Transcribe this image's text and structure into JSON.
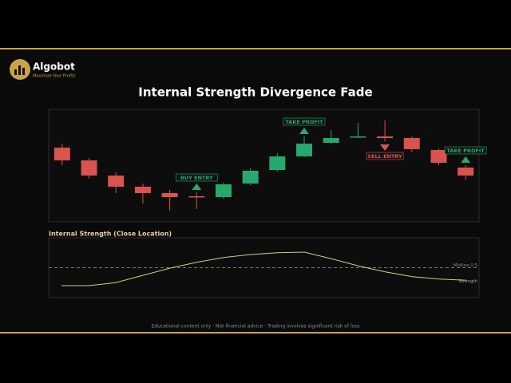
{
  "brand": {
    "name": "Algobot",
    "tagline": "Maximize Your Profits"
  },
  "footer": "Educational content only  ·  Not financial advice  ·  Trading involves significant risk of loss",
  "chart_data": [
    {
      "type": "candlestick",
      "title": "Internal Strength Divergence Fade",
      "open": [
        115,
        99,
        80,
        66,
        58,
        54,
        53,
        70,
        87,
        104,
        121,
        128,
        129,
        127,
        112,
        90
      ],
      "high": [
        120,
        102,
        84,
        70,
        62,
        59,
        71,
        89,
        108,
        129,
        137,
        146,
        149,
        129,
        114,
        93
      ],
      "low": [
        93,
        76,
        58,
        45,
        36,
        38,
        51,
        68,
        85,
        103,
        119,
        127,
        123,
        109,
        93,
        75
      ],
      "close": [
        99,
        80,
        66,
        58,
        53,
        53,
        69,
        86,
        104,
        120,
        127,
        129,
        127,
        113,
        96,
        80
      ],
      "up_color": "#26a96c",
      "down_color": "#d9534f",
      "ylim": [
        22,
        163
      ],
      "annotations": [
        {
          "index": 5,
          "text": "BUY ENTRY",
          "color": "#26a96c",
          "position": "above"
        },
        {
          "index": 9,
          "text": "TAKE PROFIT",
          "color": "#26a96c",
          "position": "above"
        },
        {
          "index": 12,
          "text": "SELL ENTRY",
          "color": "#d9534f",
          "position": "below"
        },
        {
          "index": 15,
          "text": "TAKE PROFIT",
          "color": "#26a96c",
          "position": "above"
        }
      ]
    },
    {
      "type": "line",
      "title": "Internal Strength (Close Location)",
      "series": [
        {
          "name": "Strength",
          "color": "#e0c48a",
          "values": [
            0.2,
            0.2,
            0.25,
            0.37,
            0.49,
            0.59,
            0.67,
            0.72,
            0.75,
            0.76,
            0.65,
            0.53,
            0.43,
            0.35,
            0.31,
            0.29
          ]
        }
      ],
      "ylim": [
        0,
        1
      ],
      "midline": {
        "value": 0.5,
        "label": "Midline 0.5"
      }
    }
  ]
}
